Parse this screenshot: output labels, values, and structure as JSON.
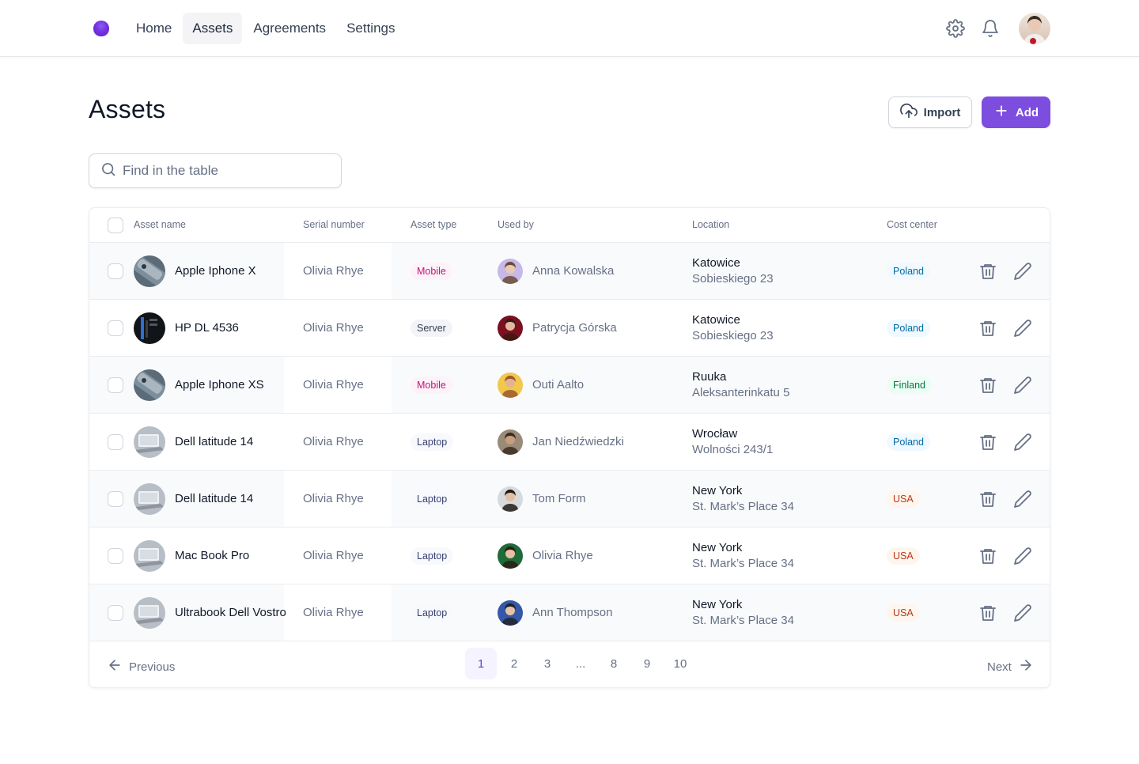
{
  "nav": {
    "items": [
      {
        "label": "Home"
      },
      {
        "label": "Assets"
      },
      {
        "label": "Agreements"
      },
      {
        "label": "Settings"
      }
    ],
    "active": "Assets"
  },
  "header": {
    "title": "Assets",
    "import_label": "Import",
    "add_label": "Add"
  },
  "search": {
    "placeholder": "Find in the table",
    "value": ""
  },
  "table": {
    "columns": [
      "Asset name",
      "Serial number",
      "Asset type",
      "Used by",
      "Location",
      "Cost center"
    ],
    "rows": [
      {
        "asset": "Apple Iphone X",
        "serial": "Olivia Rhye",
        "type": "Mobile",
        "user": "Anna Kowalska",
        "city": "Katowice",
        "street": "Sobieskiego 23",
        "cost": "Poland"
      },
      {
        "asset": "HP DL 4536",
        "serial": "Olivia Rhye",
        "type": "Server",
        "user": "Patrycja Górska",
        "city": "Katowice",
        "street": "Sobieskiego 23",
        "cost": "Poland"
      },
      {
        "asset": "Apple Iphone XS",
        "serial": "Olivia Rhye",
        "type": "Mobile",
        "user": "Outi Aalto",
        "city": "Ruuka",
        "street": "Aleksanterinkatu 5",
        "cost": "Finland"
      },
      {
        "asset": "Dell latitude 14",
        "serial": "Olivia Rhye",
        "type": "Laptop",
        "user": "Jan Niedźwiedzki",
        "city": "Wrocław",
        "street": "Wolności 243/1",
        "cost": "Poland"
      },
      {
        "asset": "Dell latitude 14",
        "serial": "Olivia Rhye",
        "type": "Laptop",
        "user": "Tom Form",
        "city": "New York",
        "street": "St. Mark’s Place 34",
        "cost": "USA"
      },
      {
        "asset": "Mac Book Pro",
        "serial": "Olivia Rhye",
        "type": "Laptop",
        "user": "Olivia Rhye",
        "city": "New York",
        "street": "St. Mark’s Place 34",
        "cost": "USA"
      },
      {
        "asset": "Ultrabook Dell Vostro",
        "serial": "Olivia Rhye",
        "type": "Laptop",
        "user": "Ann Thompson",
        "city": "New York",
        "street": "St. Mark’s Place 34",
        "cost": "USA"
      }
    ]
  },
  "pagination": {
    "prev_label": "Previous",
    "next_label": "Next",
    "pages": [
      "1",
      "2",
      "3",
      "...",
      "8",
      "9",
      "10"
    ],
    "current": "1"
  },
  "colors": {
    "accent": "#7c4ddf",
    "mobile_badge_bg": "#fdf2fa",
    "mobile_badge_fg": "#c11574",
    "neutral_badge_bg": "#f2f4f7",
    "neutral_badge_fg": "#344054",
    "laptop_badge_bg": "#f8f9fc",
    "laptop_badge_fg": "#363f72",
    "poland_bg": "#f0f9ff",
    "poland_fg": "#026aa2",
    "finland_bg": "#ecfdf3",
    "finland_fg": "#027a48",
    "usa_bg": "#fef6ee",
    "usa_fg": "#b93815"
  },
  "icons": {
    "settings": "gear-icon",
    "notifications": "bell-icon",
    "import": "cloud-upload-icon",
    "add": "plus-icon",
    "search": "search-icon",
    "delete": "trash-icon",
    "edit": "pencil-icon",
    "prev": "arrow-left-icon",
    "next": "arrow-right-icon"
  }
}
